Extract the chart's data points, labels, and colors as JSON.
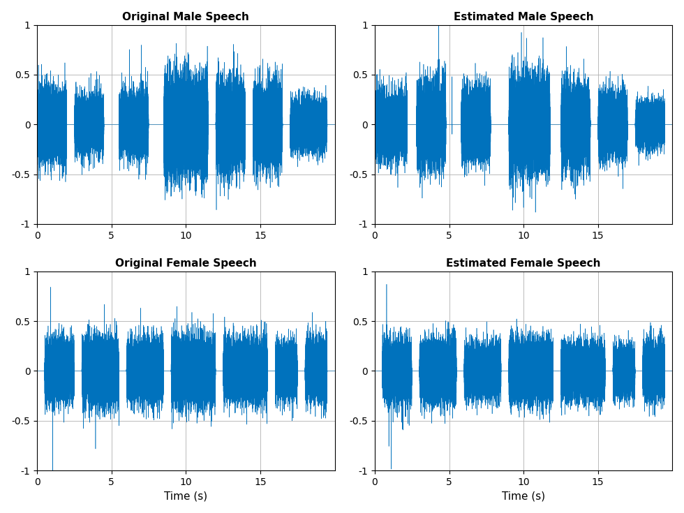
{
  "titles": [
    "Original Male Speech",
    "Estimated Male Speech",
    "Original Female Speech",
    "Estimated Female Speech"
  ],
  "xlabel": "Time (s)",
  "xlim": [
    0,
    20
  ],
  "ylim": [
    -1,
    1
  ],
  "xticks": [
    0,
    5,
    10,
    15
  ],
  "yticks": [
    -1,
    -0.5,
    0,
    0.5,
    1
  ],
  "ytick_labels": [
    "-1",
    "-0.5",
    "0",
    "0.5",
    "1"
  ],
  "line_color": "#0072BD",
  "background_color": "#ffffff",
  "grid_color": "#b0b0b0",
  "duration": 20.0,
  "sample_rate": 8000,
  "title_fontsize": 11,
  "label_fontsize": 11,
  "tick_fontsize": 10
}
